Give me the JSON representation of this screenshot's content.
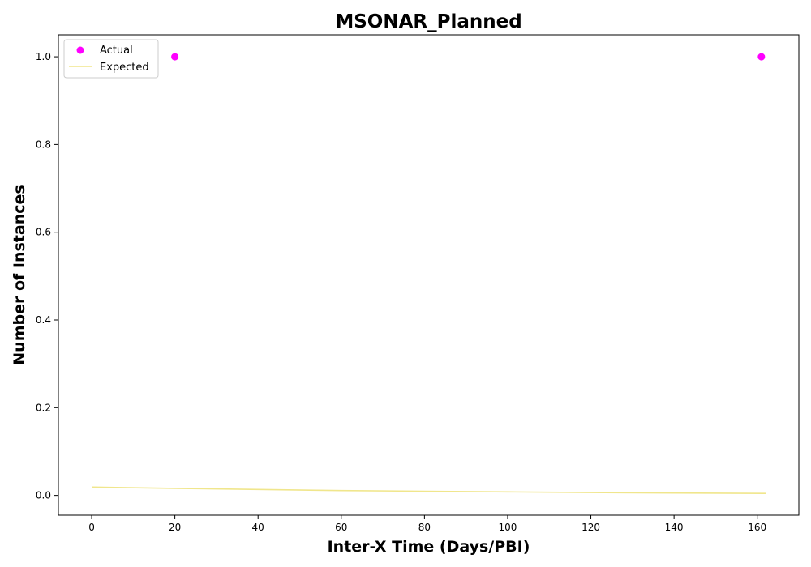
{
  "chart_data": {
    "type": "scatter",
    "title": "MSONAR_Planned",
    "xlabel": "Inter-X Time (Days/PBI)",
    "ylabel": "Number of Instances",
    "xlim": [
      -8,
      170
    ],
    "ylim": [
      -0.045,
      1.05
    ],
    "xticks": [
      0,
      20,
      40,
      60,
      80,
      100,
      120,
      140,
      160
    ],
    "yticks": [
      0.0,
      0.2,
      0.4,
      0.6,
      0.8,
      1.0
    ],
    "ytick_labels": [
      "0.0",
      "0.2",
      "0.4",
      "0.6",
      "0.8",
      "1.0"
    ],
    "grid": false,
    "legend_position": "top-left",
    "series": [
      {
        "name": "Actual",
        "kind": "scatter",
        "color": "#ff00ff",
        "points": [
          {
            "x": 20,
            "y": 1.0
          },
          {
            "x": 161,
            "y": 1.0
          }
        ]
      },
      {
        "name": "Expected",
        "kind": "line",
        "color": "#f0e68c",
        "points": [
          {
            "x": 0,
            "y": 0.019
          },
          {
            "x": 20,
            "y": 0.016
          },
          {
            "x": 40,
            "y": 0.0135
          },
          {
            "x": 60,
            "y": 0.011
          },
          {
            "x": 80,
            "y": 0.0095
          },
          {
            "x": 100,
            "y": 0.008
          },
          {
            "x": 120,
            "y": 0.0065
          },
          {
            "x": 140,
            "y": 0.0055
          },
          {
            "x": 162,
            "y": 0.0045
          }
        ]
      }
    ]
  }
}
